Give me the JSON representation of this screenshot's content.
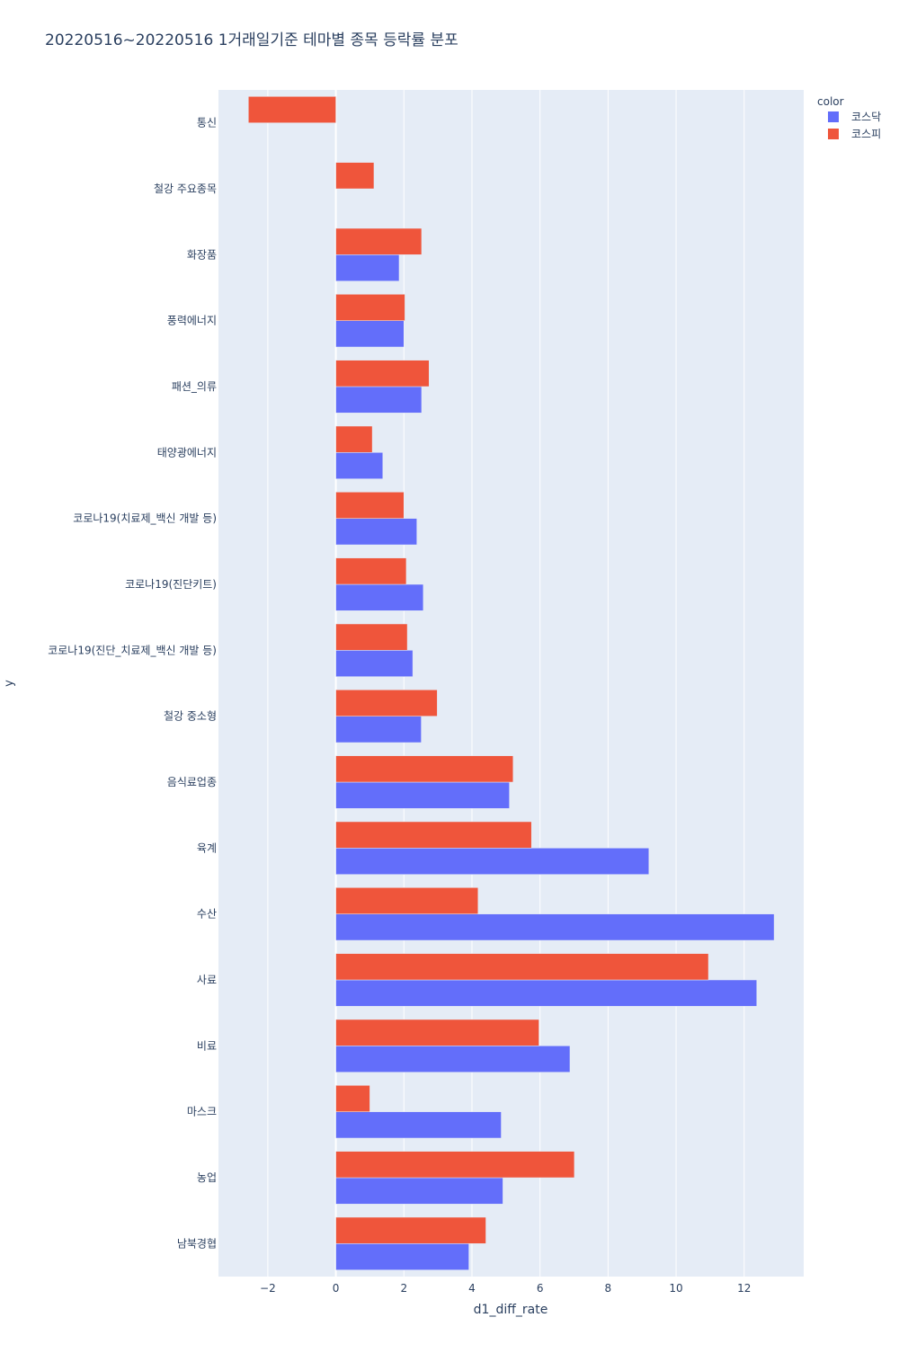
{
  "chart_data": {
    "type": "bar",
    "orientation": "horizontal",
    "barmode": "group",
    "title": "20220516~20220516 1거래일기준 테마별 종목 등락률 분포",
    "xlabel": "d1_diff_rate",
    "ylabel": "y",
    "xlim": [
      -3.45,
      13.75
    ],
    "xticks": [
      -2,
      0,
      2,
      4,
      6,
      8,
      10,
      12
    ],
    "xtick_labels": [
      "−2",
      "0",
      "2",
      "4",
      "6",
      "8",
      "10",
      "12"
    ],
    "grid": true,
    "legend": {
      "title": "color",
      "placement": "top-right"
    },
    "categories": [
      "통신",
      "철강 주요종목",
      "화장품",
      "풍력에너지",
      "패션_의류",
      "태양광에너지",
      "코로나19(치료제_백신 개발 등)",
      "코로나19(진단키트)",
      "코로나19(진단_치료제_백신 개발 등)",
      "철강 중소형",
      "음식료업종",
      "육계",
      "수산",
      "사료",
      "비료",
      "마스크",
      "농업",
      "남북경협"
    ],
    "series": [
      {
        "name": "코스닥",
        "color": "#636efa",
        "values": [
          null,
          null,
          1.86,
          2.0,
          2.52,
          1.38,
          2.38,
          2.57,
          2.26,
          2.51,
          5.1,
          9.2,
          12.88,
          12.37,
          6.88,
          4.86,
          4.91,
          3.91
        ]
      },
      {
        "name": "코스피",
        "color": "#ef553b",
        "values": [
          -2.57,
          1.12,
          2.52,
          2.03,
          2.74,
          1.07,
          2.0,
          2.07,
          2.1,
          2.98,
          5.21,
          5.75,
          4.18,
          10.95,
          5.97,
          1.0,
          7.01,
          4.41
        ]
      }
    ]
  }
}
